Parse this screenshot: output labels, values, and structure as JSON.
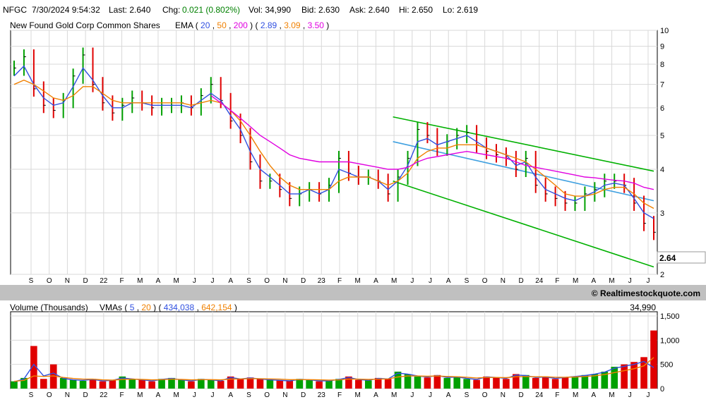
{
  "header": {
    "symbol": "NFGC",
    "datetime": "7/30/2024 9:54:32",
    "last": "Last: 2.640",
    "chg_label": "Chg:",
    "chg_value": "0.021 (0.802%)",
    "vol": "Vol: 34,990",
    "bid": "Bid: 2.630",
    "ask": "Ask: 2.640",
    "hi": "Hi: 2.650",
    "lo": "Lo: 2.619"
  },
  "price_panel": {
    "title": "New Found Gold Corp Common Shares",
    "ema_label": "EMA",
    "ema_periods": [
      "20",
      "50",
      "200"
    ],
    "ema_values": [
      "2.89",
      "3.09",
      "3.50"
    ],
    "last_tag": "2.64"
  },
  "volume_panel": {
    "title": "Volume (Thousands)",
    "vma_label": "VMAs",
    "vma_periods": [
      "5",
      "20"
    ],
    "vma_values": [
      "434,038",
      "642,154"
    ],
    "last_volume": "34,990"
  },
  "watermark": "© Realtimestockquote.com",
  "colors": {
    "ema20": "#3050e0",
    "ema50": "#f08000",
    "ema200": "#e000e0",
    "up": "#00a000",
    "down": "#e00000",
    "channel": "#00b000",
    "midline": "#3fa0e0",
    "chg": "#008000",
    "separator": "#c0c0c0"
  },
  "chart_data": [
    {
      "type": "line",
      "title": "New Found Gold Corp Common Shares",
      "y_scale": "log",
      "ylim": [
        2,
        10
      ],
      "y_ticks": [
        10,
        9,
        8,
        7,
        6,
        5,
        4,
        3,
        2
      ],
      "x_ticks": [
        "S",
        "O",
        "N",
        "D",
        "22",
        "F",
        "M",
        "A",
        "M",
        "J",
        "J",
        "A",
        "S",
        "O",
        "N",
        "D",
        "23",
        "F",
        "M",
        "A",
        "M",
        "J",
        "J",
        "A",
        "S",
        "O",
        "N",
        "D",
        "24",
        "F",
        "M",
        "A",
        "M",
        "J",
        "J"
      ],
      "price_series": [
        7.8,
        8.4,
        6.8,
        6.1,
        5.9,
        6.3,
        7.4,
        8.5,
        7.0,
        6.2,
        5.8,
        6.1,
        6.4,
        6.2,
        6.0,
        6.1,
        6.1,
        6.2,
        6.0,
        6.5,
        7.0,
        6.3,
        5.5,
        5.0,
        4.2,
        3.7,
        3.7,
        3.5,
        3.3,
        3.4,
        3.5,
        3.4,
        3.6,
        4.3,
        3.9,
        3.8,
        3.8,
        3.7,
        3.4,
        3.8,
        4.3,
        5.2,
        5.0,
        4.6,
        4.8,
        5.0,
        5.1,
        4.7,
        4.5,
        4.4,
        4.3,
        4.0,
        4.3,
        3.6,
        3.4,
        3.3,
        3.2,
        3.2,
        3.4,
        3.5,
        3.7,
        3.7,
        3.6,
        3.2,
        2.8,
        2.64
      ],
      "series": [
        {
          "name": "20",
          "last": 2.89,
          "values": [
            7.4,
            7.9,
            7.0,
            6.4,
            6.1,
            6.2,
            6.9,
            7.8,
            7.2,
            6.5,
            6.0,
            6.0,
            6.2,
            6.2,
            6.1,
            6.1,
            6.1,
            6.1,
            6.0,
            6.3,
            6.6,
            6.3,
            5.7,
            5.2,
            4.5,
            4.0,
            3.8,
            3.6,
            3.4,
            3.4,
            3.5,
            3.4,
            3.5,
            4.0,
            3.9,
            3.8,
            3.8,
            3.7,
            3.5,
            3.7,
            4.1,
            4.8,
            4.9,
            4.7,
            4.8,
            4.9,
            5.0,
            4.8,
            4.6,
            4.5,
            4.4,
            4.1,
            4.2,
            3.8,
            3.5,
            3.4,
            3.3,
            3.25,
            3.35,
            3.45,
            3.6,
            3.65,
            3.6,
            3.3,
            3.0,
            2.89
          ]
        },
        {
          "name": "50",
          "last": 3.09,
          "values": [
            7.0,
            7.2,
            7.0,
            6.7,
            6.4,
            6.3,
            6.5,
            6.9,
            6.9,
            6.6,
            6.3,
            6.2,
            6.2,
            6.2,
            6.2,
            6.2,
            6.2,
            6.2,
            6.1,
            6.2,
            6.3,
            6.2,
            5.9,
            5.5,
            5.0,
            4.5,
            4.1,
            3.8,
            3.6,
            3.5,
            3.5,
            3.5,
            3.5,
            3.7,
            3.8,
            3.8,
            3.8,
            3.7,
            3.6,
            3.7,
            3.9,
            4.3,
            4.5,
            4.6,
            4.6,
            4.7,
            4.7,
            4.7,
            4.6,
            4.5,
            4.4,
            4.3,
            4.2,
            4.0,
            3.8,
            3.6,
            3.4,
            3.35,
            3.35,
            3.4,
            3.5,
            3.55,
            3.55,
            3.4,
            3.2,
            3.09
          ]
        },
        {
          "name": "200",
          "last": 3.5,
          "values": [
            null,
            null,
            null,
            null,
            null,
            null,
            null,
            null,
            null,
            null,
            null,
            null,
            null,
            null,
            null,
            null,
            null,
            null,
            null,
            null,
            6.5,
            6.2,
            5.9,
            5.6,
            5.3,
            5.0,
            4.8,
            4.6,
            4.4,
            4.3,
            4.25,
            4.2,
            4.2,
            4.2,
            4.2,
            4.15,
            4.1,
            4.05,
            4.0,
            4.0,
            4.05,
            4.2,
            4.3,
            4.35,
            4.4,
            4.45,
            4.5,
            4.45,
            4.4,
            4.35,
            4.3,
            4.2,
            4.1,
            4.05,
            4.0,
            3.95,
            3.9,
            3.85,
            3.8,
            3.78,
            3.75,
            3.72,
            3.7,
            3.65,
            3.55,
            3.5
          ]
        }
      ],
      "channel_upper": [
        [
          38.5,
          5.65
        ],
        [
          65,
          3.95
        ]
      ],
      "channel_mid": [
        [
          38.5,
          4.8
        ],
        [
          65,
          3.25
        ]
      ],
      "channel_lower": [
        [
          38.5,
          3.7
        ],
        [
          65,
          2.1
        ]
      ]
    },
    {
      "type": "bar",
      "title": "Volume (Thousands)",
      "ylim": [
        0,
        1500
      ],
      "y_ticks": [
        "1,500",
        "1,000",
        "500",
        "0"
      ],
      "x_ticks": [
        "S",
        "O",
        "N",
        "D",
        "22",
        "F",
        "M",
        "A",
        "M",
        "J",
        "J",
        "A",
        "S",
        "O",
        "N",
        "D",
        "23",
        "F",
        "M",
        "A",
        "M",
        "J",
        "J",
        "A",
        "S",
        "O",
        "N",
        "D",
        "24",
        "F",
        "M",
        "A",
        "M",
        "J",
        "J"
      ],
      "values": [
        150,
        220,
        880,
        200,
        500,
        220,
        180,
        160,
        200,
        150,
        170,
        250,
        200,
        180,
        150,
        200,
        220,
        180,
        150,
        200,
        180,
        160,
        250,
        200,
        230,
        200,
        180,
        170,
        160,
        200,
        180,
        150,
        160,
        200,
        250,
        180,
        170,
        220,
        200,
        350,
        300,
        250,
        230,
        280,
        220,
        250,
        200,
        180,
        250,
        230,
        200,
        300,
        280,
        220,
        250,
        200,
        230,
        250,
        280,
        300,
        350,
        450,
        500,
        550,
        650,
        1200
      ],
      "series": [
        {
          "name": "5",
          "last": 434038,
          "values": [
            140,
            200,
            500,
            260,
            320,
            210,
            180,
            170,
            190,
            160,
            170,
            220,
            200,
            180,
            160,
            190,
            210,
            180,
            160,
            190,
            180,
            160,
            230,
            200,
            220,
            200,
            180,
            170,
            160,
            190,
            180,
            160,
            160,
            190,
            230,
            190,
            170,
            210,
            200,
            320,
            300,
            260,
            240,
            270,
            230,
            240,
            210,
            190,
            240,
            230,
            210,
            280,
            270,
            230,
            240,
            210,
            230,
            250,
            270,
            300,
            340,
            420,
            460,
            500,
            560,
            434
          ]
        },
        {
          "name": "20",
          "last": 642154,
          "values": [
            150,
            170,
            260,
            250,
            260,
            230,
            210,
            195,
            195,
            180,
            175,
            190,
            195,
            190,
            180,
            185,
            195,
            190,
            180,
            185,
            185,
            180,
            195,
            200,
            205,
            205,
            200,
            195,
            185,
            185,
            185,
            180,
            175,
            180,
            195,
            195,
            190,
            195,
            200,
            240,
            260,
            260,
            255,
            260,
            250,
            245,
            235,
            220,
            230,
            230,
            225,
            245,
            250,
            245,
            245,
            235,
            235,
            240,
            250,
            265,
            290,
            330,
            370,
            410,
            470,
            642
          ]
        }
      ]
    }
  ]
}
